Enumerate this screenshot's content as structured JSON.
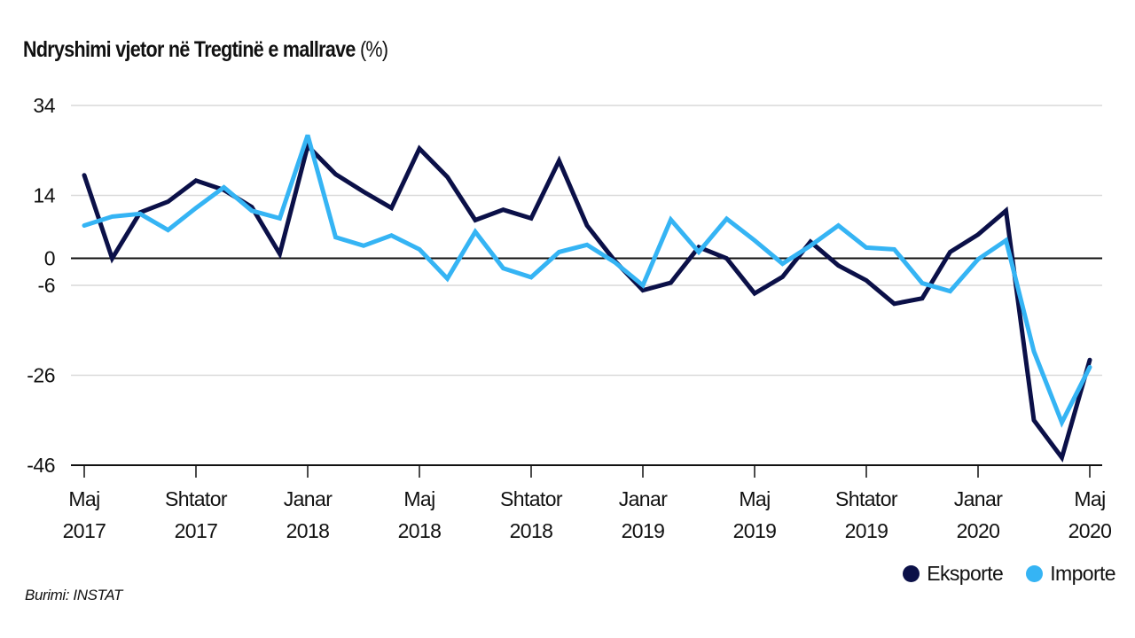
{
  "colors": {
    "exports": "#0b1048",
    "imports": "#35b4f4",
    "grid": "#d9d9d9",
    "axis": "#111111"
  },
  "legend": [
    {
      "label": "Eksporte",
      "color": "#0b1048"
    },
    {
      "label": "Importe",
      "color": "#35b4f4"
    }
  ],
  "source": "Burimi: INSTAT",
  "chart_data": {
    "type": "line",
    "title": "Ndryshimi vjetor në Tregtinë e mallrave",
    "title_unit": "(%)",
    "xlabel": "",
    "ylabel": "",
    "ylim": [
      -46,
      34
    ],
    "yticks": [
      34,
      14,
      0,
      -6,
      -26,
      -46
    ],
    "grid": true,
    "legend_position": "bottom-right",
    "x": [
      "2017-05",
      "2017-06",
      "2017-07",
      "2017-08",
      "2017-09",
      "2017-10",
      "2017-11",
      "2017-12",
      "2018-01",
      "2018-02",
      "2018-03",
      "2018-04",
      "2018-05",
      "2018-06",
      "2018-07",
      "2018-08",
      "2018-09",
      "2018-10",
      "2018-11",
      "2018-12",
      "2019-01",
      "2019-02",
      "2019-03",
      "2019-04",
      "2019-05",
      "2019-06",
      "2019-07",
      "2019-08",
      "2019-09",
      "2019-10",
      "2019-11",
      "2019-12",
      "2020-01",
      "2020-02",
      "2020-03",
      "2020-04",
      "2020-05"
    ],
    "xtick_labels": [
      {
        "index": 0,
        "month": "Maj",
        "year": "2017"
      },
      {
        "index": 4,
        "month": "Shtator",
        "year": "2017"
      },
      {
        "index": 8,
        "month": "Janar",
        "year": "2018"
      },
      {
        "index": 12,
        "month": "Maj",
        "year": "2018"
      },
      {
        "index": 16,
        "month": "Shtator",
        "year": "2018"
      },
      {
        "index": 20,
        "month": "Janar",
        "year": "2019"
      },
      {
        "index": 24,
        "month": "Maj",
        "year": "2019"
      },
      {
        "index": 28,
        "month": "Shtator",
        "year": "2019"
      },
      {
        "index": 32,
        "month": "Janar",
        "year": "2020"
      },
      {
        "index": 36,
        "month": "Maj",
        "year": "2020"
      }
    ],
    "series": [
      {
        "name": "Eksporte",
        "key": "exports",
        "values": [
          18.5,
          0,
          10.2,
          12.6,
          17.3,
          15.2,
          11.4,
          1,
          25,
          18.7,
          14.8,
          11.2,
          24.4,
          18.1,
          8.5,
          10.8,
          8.9,
          21.7,
          7.3,
          -0.6,
          -7.1,
          -5.4,
          2.5,
          0,
          -7.8,
          -4.1,
          3.7,
          -1.6,
          -4.9,
          -10.1,
          -8.9,
          1.4,
          5.3,
          10.6,
          -36,
          -44.3,
          -22.6
        ]
      },
      {
        "name": "Importe",
        "key": "imports",
        "values": [
          7.3,
          9.3,
          9.9,
          6.3,
          11.2,
          15.8,
          10.6,
          8.9,
          27.4,
          4.7,
          2.8,
          5.1,
          2,
          -4.5,
          5.9,
          -2.2,
          -4.2,
          1.4,
          3.0,
          -0.9,
          -6.0,
          8.6,
          1.4,
          8.8,
          4.0,
          -1.2,
          2.8,
          7.3,
          2.4,
          2.0,
          -5.5,
          -7.3,
          -0.2,
          4.0,
          -20.7,
          -36.5,
          -24.2
        ]
      }
    ]
  }
}
